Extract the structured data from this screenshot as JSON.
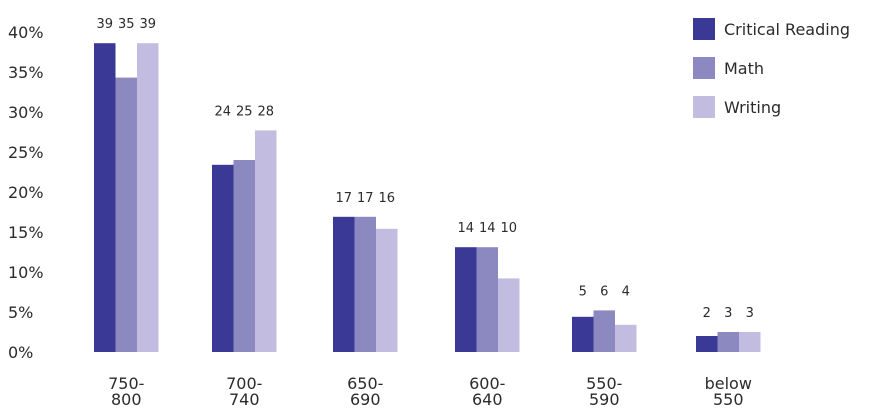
{
  "chart_data": {
    "type": "bar",
    "categories": [
      [
        "750-",
        "800"
      ],
      [
        "700-",
        "740"
      ],
      [
        "650-",
        "690"
      ],
      [
        "600-",
        "640"
      ],
      [
        "550-",
        "590"
      ],
      [
        "below",
        "550"
      ]
    ],
    "series": [
      {
        "name": "Critical Reading",
        "color": "#3a3a96",
        "values": [
          39,
          24,
          17,
          14,
          5,
          2
        ]
      },
      {
        "name": "Math",
        "color": "#8c88c0",
        "values": [
          35,
          25,
          17,
          14,
          6,
          3
        ]
      },
      {
        "name": "Writing",
        "color": "#c2bde0",
        "values": [
          39,
          28,
          16,
          10,
          4,
          3
        ]
      }
    ],
    "bar_heights_pct": [
      [
        38.6,
        23.4,
        16.9,
        13.1,
        4.4,
        2.0
      ],
      [
        34.3,
        24.0,
        16.9,
        13.1,
        5.2,
        2.5
      ],
      [
        38.6,
        27.7,
        15.4,
        9.2,
        3.4,
        2.5
      ]
    ],
    "ylim": [
      0,
      40
    ],
    "yticks": [
      "0%",
      "5%",
      "10%",
      "15%",
      "20%",
      "25%",
      "30%",
      "35%",
      "40%"
    ],
    "legend_position": "top-right",
    "grid": false
  }
}
